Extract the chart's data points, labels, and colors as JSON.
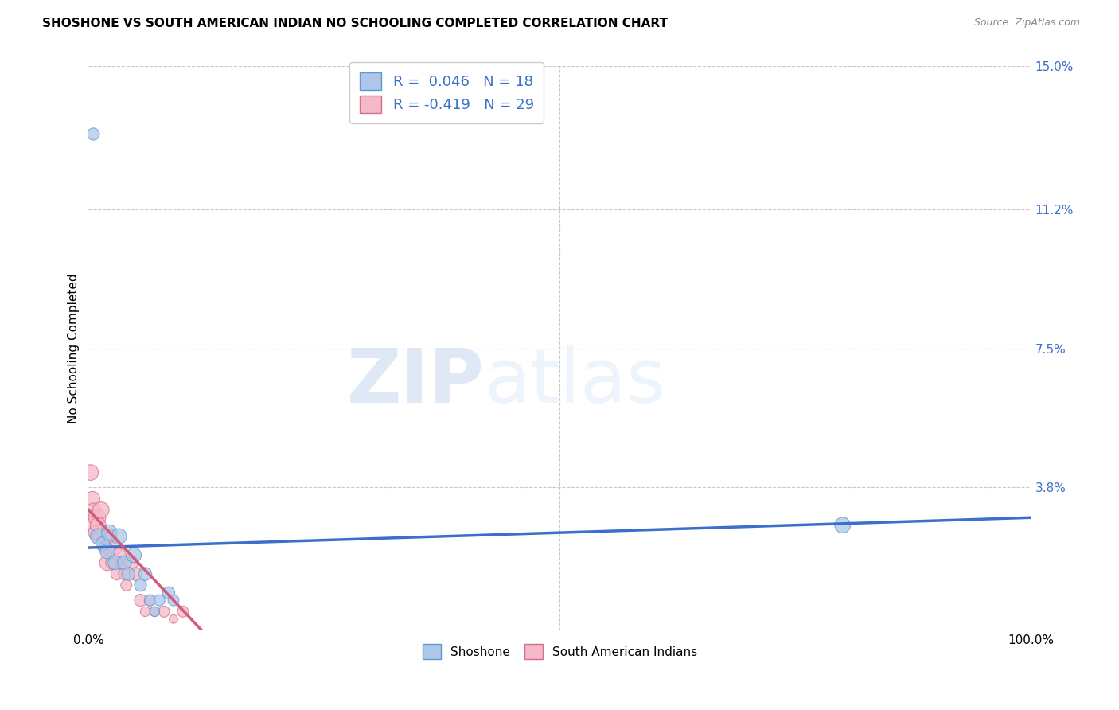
{
  "title": "SHOSHONE VS SOUTH AMERICAN INDIAN NO SCHOOLING COMPLETED CORRELATION CHART",
  "source": "Source: ZipAtlas.com",
  "ylabel": "No Schooling Completed",
  "xlim": [
    0,
    100
  ],
  "ylim": [
    0,
    15
  ],
  "yticks": [
    0,
    3.8,
    7.5,
    11.2,
    15.0
  ],
  "xtick_positions": [
    0,
    25,
    50,
    75,
    100
  ],
  "xtick_labels": [
    "0.0%",
    "",
    "",
    "",
    "100.0%"
  ],
  "grid_color": "#c8c8c8",
  "background_color": "#ffffff",
  "shoshone_color": "#aec6e8",
  "shoshone_edge_color": "#5b9bd5",
  "sam_color": "#f4b8c8",
  "sam_edge_color": "#d4708a",
  "blue_line_color": "#3a6fcc",
  "pink_line_color": "#d45a7a",
  "watermark_zip": "ZIP",
  "watermark_atlas": "atlas",
  "shoshone_R": 0.046,
  "shoshone_N": 18,
  "sam_R": -0.419,
  "sam_N": 29,
  "shoshone_points": [
    [
      0.5,
      13.2
    ],
    [
      1.0,
      2.5
    ],
    [
      1.5,
      2.3
    ],
    [
      2.0,
      2.1
    ],
    [
      2.2,
      2.6
    ],
    [
      2.8,
      1.8
    ],
    [
      3.2,
      2.5
    ],
    [
      3.8,
      1.8
    ],
    [
      4.2,
      1.5
    ],
    [
      4.8,
      2.0
    ],
    [
      5.5,
      1.2
    ],
    [
      6.0,
      1.5
    ],
    [
      6.5,
      0.8
    ],
    [
      7.0,
      0.5
    ],
    [
      7.5,
      0.8
    ],
    [
      8.5,
      1.0
    ],
    [
      9.0,
      0.8
    ],
    [
      80.0,
      2.8
    ]
  ],
  "shoshone_sizes": [
    120,
    200,
    160,
    180,
    200,
    160,
    200,
    160,
    140,
    180,
    120,
    140,
    100,
    80,
    100,
    120,
    100,
    200
  ],
  "sam_points": [
    [
      0.2,
      4.2
    ],
    [
      0.4,
      3.5
    ],
    [
      0.5,
      3.2
    ],
    [
      0.6,
      2.8
    ],
    [
      0.8,
      2.6
    ],
    [
      0.9,
      3.0
    ],
    [
      1.0,
      2.8
    ],
    [
      1.2,
      2.5
    ],
    [
      1.3,
      3.2
    ],
    [
      1.5,
      2.3
    ],
    [
      1.8,
      2.2
    ],
    [
      2.0,
      1.8
    ],
    [
      2.2,
      2.5
    ],
    [
      2.5,
      1.8
    ],
    [
      2.8,
      2.2
    ],
    [
      3.0,
      1.5
    ],
    [
      3.2,
      2.0
    ],
    [
      3.5,
      1.8
    ],
    [
      3.8,
      1.5
    ],
    [
      4.0,
      1.2
    ],
    [
      4.5,
      1.8
    ],
    [
      5.0,
      1.5
    ],
    [
      5.5,
      0.8
    ],
    [
      6.0,
      0.5
    ],
    [
      6.5,
      0.8
    ],
    [
      7.0,
      0.5
    ],
    [
      8.0,
      0.5
    ],
    [
      9.0,
      0.3
    ],
    [
      10.0,
      0.5
    ]
  ],
  "sam_sizes": [
    200,
    180,
    160,
    220,
    200,
    240,
    200,
    180,
    220,
    160,
    140,
    200,
    180,
    140,
    160,
    120,
    160,
    140,
    120,
    100,
    160,
    140,
    120,
    80,
    100,
    80,
    100,
    60,
    100
  ],
  "blue_line_x": [
    0,
    100
  ],
  "blue_line_y": [
    2.2,
    3.0
  ],
  "pink_line_x": [
    0,
    12
  ],
  "pink_line_y": [
    3.2,
    0.0
  ]
}
